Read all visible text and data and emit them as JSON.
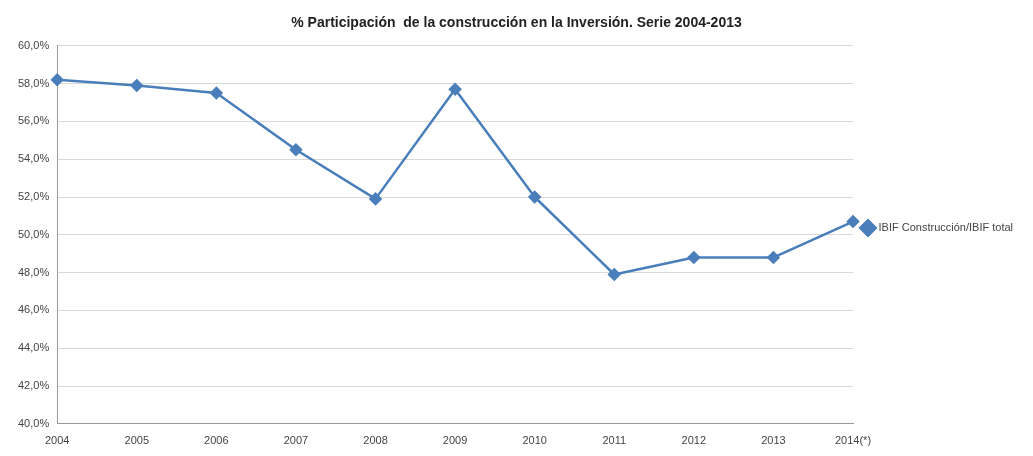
{
  "chart_data": {
    "type": "line",
    "title": "% Participación  de la construcción en la Inversión. Serie 2004-2013",
    "categories": [
      "2004",
      "2005",
      "2006",
      "2007",
      "2008",
      "2009",
      "2010",
      "2011",
      "2012",
      "2013",
      "2014(*)"
    ],
    "series": [
      {
        "name": "IBIF Construcción/IBIF total",
        "color": "#4a7ebb",
        "values": [
          58.2,
          57.9,
          57.5,
          54.5,
          51.9,
          57.7,
          52.0,
          47.9,
          48.8,
          48.8,
          50.7
        ]
      }
    ],
    "ylim": [
      40,
      60
    ],
    "yticks": [
      {
        "value": 40,
        "label": "40,0%"
      },
      {
        "value": 42,
        "label": "42,0%"
      },
      {
        "value": 44,
        "label": "44,0%"
      },
      {
        "value": 46,
        "label": "46,0%"
      },
      {
        "value": 48,
        "label": "48,0%"
      },
      {
        "value": 50,
        "label": "50,0%"
      },
      {
        "value": 52,
        "label": "52,0%"
      },
      {
        "value": 54,
        "label": "54,0%"
      },
      {
        "value": 56,
        "label": "56,0%"
      },
      {
        "value": 58,
        "label": "58,0%"
      },
      {
        "value": 60,
        "label": "60,0%"
      }
    ],
    "grid": "y",
    "legend": "right",
    "marker": "diamond",
    "line_style": "solid"
  }
}
